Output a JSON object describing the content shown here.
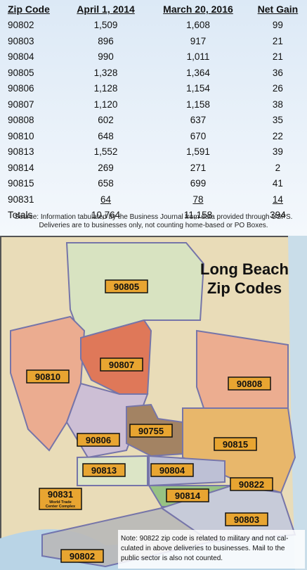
{
  "table": {
    "headers": [
      "Zip Code",
      "April 1, 2014",
      "March 20, 2016",
      "Net Gain"
    ],
    "rows": [
      [
        "90802",
        "1,509",
        "1,608",
        "99"
      ],
      [
        "90803",
        "896",
        "917",
        "21"
      ],
      [
        "90804",
        "990",
        "1,011",
        "21"
      ],
      [
        "90805",
        "1,328",
        "1,364",
        "36"
      ],
      [
        "90806",
        "1,128",
        "1,154",
        "26"
      ],
      [
        "90807",
        "1,120",
        "1,158",
        "38"
      ],
      [
        "90808",
        "602",
        "637",
        "35"
      ],
      [
        "90810",
        "648",
        "670",
        "22"
      ],
      [
        "90813",
        "1,552",
        "1,591",
        "39"
      ],
      [
        "90814",
        "269",
        "271",
        "2"
      ],
      [
        "90815",
        "658",
        "699",
        "41"
      ],
      [
        "90831",
        "64",
        "78",
        "14"
      ],
      [
        "Totals",
        "10,764",
        "11,158",
        "394"
      ]
    ]
  },
  "source": [
    "Source: Information tabulated by the Business Journal from data provided through USPS.",
    "Deliveries are to businesses only, not counting home-based or PO Boxes."
  ],
  "map": {
    "title": [
      "Long Beach",
      "Zip Codes"
    ],
    "labels": [
      {
        "text": "90805"
      },
      {
        "text": "90810"
      },
      {
        "text": "90807"
      },
      {
        "text": "90808"
      },
      {
        "text": "90806"
      },
      {
        "text": "90755"
      },
      {
        "text": "90815"
      },
      {
        "text": "90813"
      },
      {
        "text": "90804"
      },
      {
        "text": "90822"
      },
      {
        "text": "90831",
        "sub": [
          "World Trade",
          "Center Complex"
        ]
      },
      {
        "text": "90814"
      },
      {
        "text": "90803"
      },
      {
        "text": "90802"
      }
    ],
    "note": [
      "Note: 90822 zip code is related to military and not cal-",
      "culated in above deliveries to businesses. Mail to the",
      "public sector is also not counted."
    ]
  }
}
